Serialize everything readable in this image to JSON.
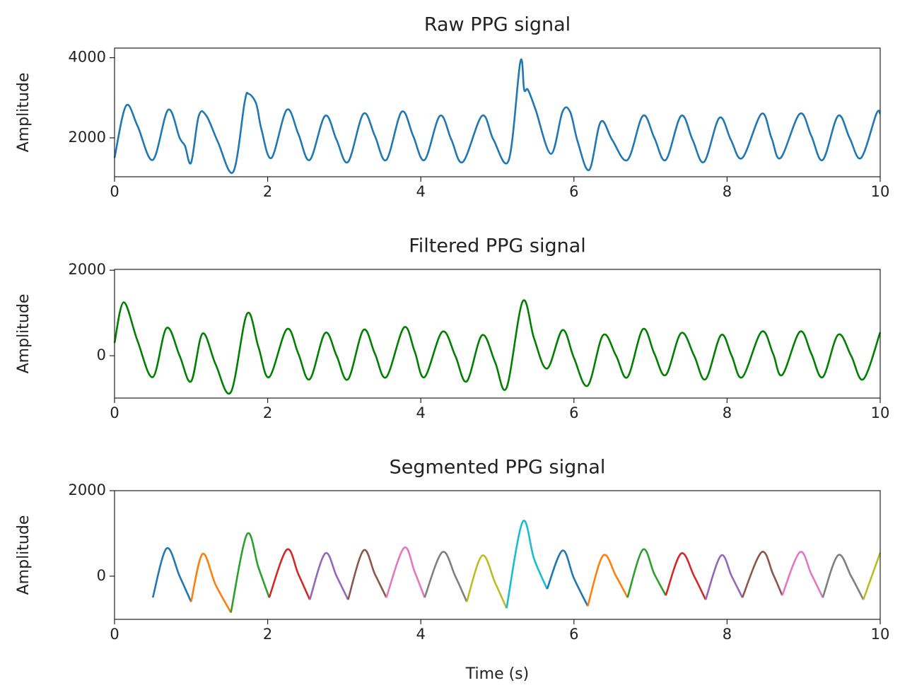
{
  "chart_data": [
    {
      "type": "line",
      "title": "Raw PPG signal",
      "ylabel": "Amplitude",
      "xlim": [
        0,
        10
      ],
      "xticks": [
        0,
        2,
        4,
        6,
        8,
        10
      ],
      "ylim": [
        1030,
        4240
      ],
      "yticks": [
        2000,
        4000
      ],
      "series": [
        {
          "color": "#1f77b4",
          "x": [
            0,
            0.15,
            0.3,
            0.5,
            0.7,
            0.85,
            0.92,
            1.0,
            1.1,
            1.2,
            1.35,
            1.55,
            1.7,
            1.75,
            1.85,
            1.92,
            2.05,
            2.25,
            2.4,
            2.55,
            2.75,
            2.9,
            3.05,
            3.25,
            3.4,
            3.55,
            3.75,
            3.9,
            4.05,
            4.25,
            4.4,
            4.55,
            4.8,
            4.95,
            5.15,
            5.3,
            5.35,
            5.4,
            5.5,
            5.7,
            5.85,
            5.95,
            6.05,
            6.2,
            6.35,
            6.5,
            6.7,
            6.9,
            7.05,
            7.2,
            7.4,
            7.55,
            7.7,
            7.9,
            8.05,
            8.2,
            8.45,
            8.58,
            8.7,
            8.95,
            9.1,
            9.25,
            9.45,
            9.6,
            9.75,
            9.95,
            10.0
          ],
          "values": [
            1500,
            2800,
            2300,
            1450,
            2700,
            2000,
            1800,
            1380,
            2550,
            2550,
            1900,
            1150,
            2900,
            3100,
            2850,
            2200,
            1500,
            2700,
            2100,
            1450,
            2550,
            1950,
            1400,
            2600,
            2050,
            1450,
            2650,
            2050,
            1450,
            2550,
            1950,
            1400,
            2550,
            1950,
            1450,
            3900,
            3200,
            3200,
            2700,
            1600,
            2650,
            2650,
            1900,
            1200,
            2400,
            1950,
            1450,
            2550,
            2000,
            1450,
            2550,
            1950,
            1400,
            2500,
            1950,
            1500,
            2600,
            2000,
            1500,
            2600,
            2050,
            1450,
            2550,
            2000,
            1500,
            2600,
            2600
          ]
        }
      ]
    },
    {
      "type": "line",
      "title": "Filtered PPG signal",
      "ylabel": "Amplitude",
      "xlim": [
        0,
        10
      ],
      "xticks": [
        0,
        2,
        4,
        6,
        8,
        10
      ],
      "ylim": [
        -990,
        2020
      ],
      "yticks": [
        0,
        2000
      ],
      "series": [
        {
          "color": "#008000",
          "x": [
            0,
            0.12,
            0.3,
            0.5,
            0.68,
            0.85,
            1.0,
            1.15,
            1.32,
            1.52,
            1.73,
            1.88,
            2.02,
            2.25,
            2.4,
            2.55,
            2.75,
            2.9,
            3.05,
            3.25,
            3.4,
            3.55,
            3.78,
            3.92,
            4.05,
            4.28,
            4.45,
            4.6,
            4.8,
            4.97,
            5.12,
            5.33,
            5.48,
            5.65,
            5.85,
            6.0,
            6.18,
            6.38,
            6.55,
            6.7,
            6.9,
            7.05,
            7.2,
            7.4,
            7.57,
            7.72,
            7.92,
            8.06,
            8.2,
            8.45,
            8.6,
            8.72,
            8.95,
            9.1,
            9.25,
            9.45,
            9.62,
            9.78,
            10.0
          ],
          "values": [
            300,
            1250,
            350,
            -500,
            650,
            0,
            -600,
            520,
            -200,
            -850,
            980,
            200,
            -500,
            620,
            50,
            -550,
            530,
            0,
            -550,
            600,
            50,
            -500,
            660,
            100,
            -500,
            560,
            0,
            -600,
            480,
            -150,
            -750,
            1270,
            400,
            -300,
            600,
            -50,
            -700,
            480,
            0,
            -500,
            620,
            50,
            -450,
            530,
            0,
            -550,
            480,
            0,
            -500,
            560,
            50,
            -450,
            560,
            50,
            -500,
            490,
            0,
            -550,
            550
          ]
        }
      ]
    },
    {
      "type": "line",
      "title": "Segmented PPG signal",
      "ylabel": "Amplitude",
      "xlabel": "Time (s)",
      "xlim": [
        0,
        10
      ],
      "xticks": [
        0,
        2,
        4,
        6,
        8,
        10
      ],
      "ylim": [
        -1010,
        2000
      ],
      "yticks": [
        0,
        2000
      ],
      "series": [
        {
          "color": "#1f77b4",
          "x": [
            0.5,
            0.68,
            0.85,
            1.0
          ],
          "values": [
            -500,
            650,
            0,
            -600
          ]
        },
        {
          "color": "#ff7f0e",
          "x": [
            1.0,
            1.15,
            1.32,
            1.52
          ],
          "values": [
            -600,
            520,
            -200,
            -850
          ]
        },
        {
          "color": "#2ca02c",
          "x": [
            1.52,
            1.73,
            1.88,
            2.02
          ],
          "values": [
            -850,
            980,
            200,
            -500
          ]
        },
        {
          "color": "#d62728",
          "x": [
            2.02,
            2.25,
            2.4,
            2.55
          ],
          "values": [
            -500,
            620,
            50,
            -550
          ]
        },
        {
          "color": "#9467bd",
          "x": [
            2.55,
            2.75,
            2.9,
            3.05
          ],
          "values": [
            -550,
            530,
            0,
            -550
          ]
        },
        {
          "color": "#8c564b",
          "x": [
            3.05,
            3.25,
            3.4,
            3.55
          ],
          "values": [
            -550,
            600,
            50,
            -500
          ]
        },
        {
          "color": "#e377c2",
          "x": [
            3.55,
            3.78,
            3.92,
            4.05
          ],
          "values": [
            -500,
            660,
            100,
            -500
          ]
        },
        {
          "color": "#7f7f7f",
          "x": [
            4.05,
            4.28,
            4.45,
            4.6
          ],
          "values": [
            -500,
            560,
            0,
            -600
          ]
        },
        {
          "color": "#bcbd22",
          "x": [
            4.6,
            4.8,
            4.97,
            5.12
          ],
          "values": [
            -600,
            480,
            -150,
            -750
          ]
        },
        {
          "color": "#17becf",
          "x": [
            5.12,
            5.33,
            5.48,
            5.65
          ],
          "values": [
            -750,
            1270,
            400,
            -300
          ]
        },
        {
          "color": "#1f77b4",
          "x": [
            5.65,
            5.85,
            6.0,
            6.18
          ],
          "values": [
            -300,
            600,
            -50,
            -700
          ]
        },
        {
          "color": "#ff7f0e",
          "x": [
            6.18,
            6.38,
            6.55,
            6.7
          ],
          "values": [
            -700,
            480,
            0,
            -500
          ]
        },
        {
          "color": "#2ca02c",
          "x": [
            6.7,
            6.9,
            7.05,
            7.2
          ],
          "values": [
            -500,
            620,
            50,
            -450
          ]
        },
        {
          "color": "#d62728",
          "x": [
            7.2,
            7.4,
            7.57,
            7.72
          ],
          "values": [
            -450,
            530,
            0,
            -550
          ]
        },
        {
          "color": "#9467bd",
          "x": [
            7.72,
            7.92,
            8.06,
            8.2
          ],
          "values": [
            -550,
            480,
            0,
            -500
          ]
        },
        {
          "color": "#8c564b",
          "x": [
            8.2,
            8.45,
            8.6,
            8.72
          ],
          "values": [
            -500,
            560,
            50,
            -450
          ]
        },
        {
          "color": "#e377c2",
          "x": [
            8.72,
            8.95,
            9.1,
            9.25
          ],
          "values": [
            -450,
            560,
            50,
            -500
          ]
        },
        {
          "color": "#7f7f7f",
          "x": [
            9.25,
            9.45,
            9.62,
            9.78
          ],
          "values": [
            -500,
            490,
            0,
            -550
          ]
        },
        {
          "color": "#bcbd22",
          "x": [
            9.78,
            10.0
          ],
          "values": [
            -550,
            550
          ]
        }
      ]
    }
  ]
}
